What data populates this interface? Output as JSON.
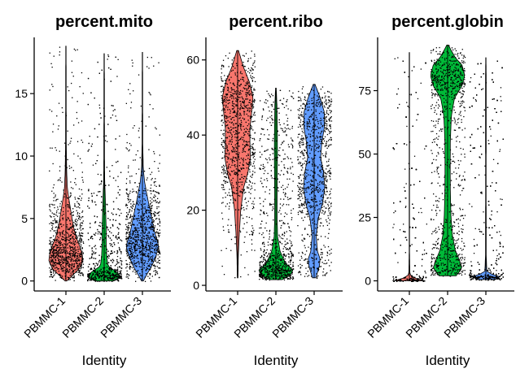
{
  "chart_data": [
    {
      "type": "violin",
      "title": "percent.mito",
      "xlabel": "Identity",
      "ylabel": "",
      "categories": [
        "PBMMC-1",
        "PBMMC-2",
        "PBMMC-3"
      ],
      "yticks": [
        "0",
        "5",
        "10",
        "15"
      ],
      "ylim": [
        -0.8,
        19.5
      ],
      "grid": false,
      "legend": "none",
      "series": [
        {
          "category": "PBMMC-1",
          "color": "#F8766D",
          "min": 0.0,
          "max": 18.8,
          "median": 2.2,
          "density": [
            [
              0.0,
              0.05
            ],
            [
              0.4,
              0.35
            ],
            [
              1.0,
              0.8
            ],
            [
              1.6,
              1.0
            ],
            [
              2.2,
              0.95
            ],
            [
              2.8,
              0.8
            ],
            [
              3.5,
              0.6
            ],
            [
              4.5,
              0.42
            ],
            [
              5.5,
              0.3
            ],
            [
              6.5,
              0.18
            ],
            [
              7.5,
              0.08
            ],
            [
              9,
              0.04
            ],
            [
              11,
              0.02
            ],
            [
              18.8,
              0.01
            ]
          ]
        },
        {
          "category": "PBMMC-2",
          "color": "#00BA38",
          "min": 0.0,
          "max": 18.2,
          "median": 0.5,
          "density": [
            [
              0.0,
              0.55
            ],
            [
              0.3,
              1.0
            ],
            [
              0.7,
              0.75
            ],
            [
              1.2,
              0.22
            ],
            [
              2,
              0.15
            ],
            [
              3,
              0.12
            ],
            [
              4,
              0.12
            ],
            [
              5,
              0.1
            ],
            [
              6,
              0.08
            ],
            [
              7,
              0.06
            ],
            [
              8,
              0.03
            ],
            [
              10,
              0.02
            ],
            [
              18.2,
              0.01
            ]
          ]
        },
        {
          "category": "PBMMC-3",
          "color": "#619CFF",
          "min": 0.0,
          "max": 18.3,
          "median": 2.8,
          "density": [
            [
              0.0,
              0.05
            ],
            [
              0.5,
              0.25
            ],
            [
              1.2,
              0.55
            ],
            [
              2,
              0.8
            ],
            [
              2.8,
              0.95
            ],
            [
              3.3,
              0.85
            ],
            [
              4,
              0.7
            ],
            [
              5,
              0.55
            ],
            [
              6,
              0.4
            ],
            [
              7,
              0.25
            ],
            [
              8,
              0.12
            ],
            [
              9,
              0.05
            ],
            [
              11,
              0.02
            ],
            [
              18.3,
              0.01
            ]
          ]
        }
      ]
    },
    {
      "type": "violin",
      "title": "percent.ribo",
      "xlabel": "Identity",
      "ylabel": "",
      "categories": [
        "PBMMC-1",
        "PBMMC-2",
        "PBMMC-3"
      ],
      "yticks": [
        "0",
        "20",
        "40",
        "60"
      ],
      "ylim": [
        -1.5,
        66
      ],
      "grid": false,
      "legend": "none",
      "series": [
        {
          "category": "PBMMC-1",
          "color": "#F8766D",
          "min": 2.0,
          "max": 62.5,
          "median": 38,
          "density": [
            [
              2,
              0.02
            ],
            [
              8,
              0.04
            ],
            [
              14,
              0.1
            ],
            [
              20,
              0.18
            ],
            [
              26,
              0.35
            ],
            [
              30,
              0.6
            ],
            [
              34,
              0.75
            ],
            [
              38,
              0.72
            ],
            [
              42,
              0.72
            ],
            [
              46,
              0.82
            ],
            [
              50,
              0.9
            ],
            [
              54,
              0.7
            ],
            [
              58,
              0.35
            ],
            [
              62.5,
              0.05
            ]
          ]
        },
        {
          "category": "PBMMC-2",
          "color": "#00BA38",
          "min": 1.5,
          "max": 52.5,
          "median": 4,
          "density": [
            [
              1.5,
              0.35
            ],
            [
              2.5,
              0.8
            ],
            [
              4,
              1.0
            ],
            [
              6,
              0.55
            ],
            [
              9,
              0.25
            ],
            [
              13,
              0.1
            ],
            [
              18,
              0.07
            ],
            [
              24,
              0.07
            ],
            [
              30,
              0.08
            ],
            [
              36,
              0.09
            ],
            [
              42,
              0.08
            ],
            [
              48,
              0.06
            ],
            [
              52.5,
              0.02
            ]
          ]
        },
        {
          "category": "PBMMC-3",
          "color": "#619CFF",
          "min": 2.0,
          "max": 53.5,
          "median": 27,
          "density": [
            [
              2,
              0.1
            ],
            [
              5,
              0.3
            ],
            [
              7,
              0.35
            ],
            [
              9,
              0.2
            ],
            [
              13,
              0.12
            ],
            [
              18,
              0.25
            ],
            [
              22,
              0.5
            ],
            [
              26,
              0.62
            ],
            [
              30,
              0.55
            ],
            [
              34,
              0.38
            ],
            [
              38,
              0.45
            ],
            [
              42,
              0.6
            ],
            [
              46,
              0.6
            ],
            [
              50,
              0.35
            ],
            [
              53.5,
              0.05
            ]
          ]
        }
      ]
    },
    {
      "type": "violin",
      "title": "percent.globin",
      "xlabel": "Identity",
      "ylabel": "",
      "categories": [
        "PBMMC-1",
        "PBMMC-2",
        "PBMMC-3"
      ],
      "yticks": [
        "0",
        "25",
        "50",
        "75"
      ],
      "ylim": [
        -4,
        96
      ],
      "grid": false,
      "legend": "none",
      "series": [
        {
          "category": "PBMMC-1",
          "color": "#F8766D",
          "min": 0.0,
          "max": 90,
          "median": 0.3,
          "density": [
            [
              0,
              0.9
            ],
            [
              0.5,
              1.0
            ],
            [
              1.2,
              0.25
            ],
            [
              2.5,
              0.03
            ],
            [
              10,
              0.012
            ],
            [
              30,
              0.01
            ],
            [
              60,
              0.01
            ],
            [
              90,
              0.008
            ]
          ]
        },
        {
          "category": "PBMMC-2",
          "color": "#00BA38",
          "min": 2.0,
          "max": 93,
          "median": 80,
          "density": [
            [
              2,
              0.5
            ],
            [
              5,
              0.85
            ],
            [
              8,
              0.7
            ],
            [
              12,
              0.45
            ],
            [
              18,
              0.28
            ],
            [
              25,
              0.2
            ],
            [
              35,
              0.16
            ],
            [
              45,
              0.15
            ],
            [
              55,
              0.16
            ],
            [
              65,
              0.22
            ],
            [
              72,
              0.4
            ],
            [
              77,
              0.85
            ],
            [
              81,
              1.0
            ],
            [
              85,
              0.85
            ],
            [
              88,
              0.45
            ],
            [
              91,
              0.2
            ],
            [
              93,
              0.05
            ]
          ]
        },
        {
          "category": "PBMMC-3",
          "color": "#619CFF",
          "min": 0.5,
          "max": 88,
          "median": 1.5,
          "density": [
            [
              0.5,
              0.5
            ],
            [
              1.2,
              1.0
            ],
            [
              2.2,
              0.5
            ],
            [
              3.5,
              0.06
            ],
            [
              10,
              0.02
            ],
            [
              40,
              0.015
            ],
            [
              70,
              0.02
            ],
            [
              80,
              0.02
            ],
            [
              88,
              0.008
            ]
          ]
        }
      ]
    }
  ]
}
